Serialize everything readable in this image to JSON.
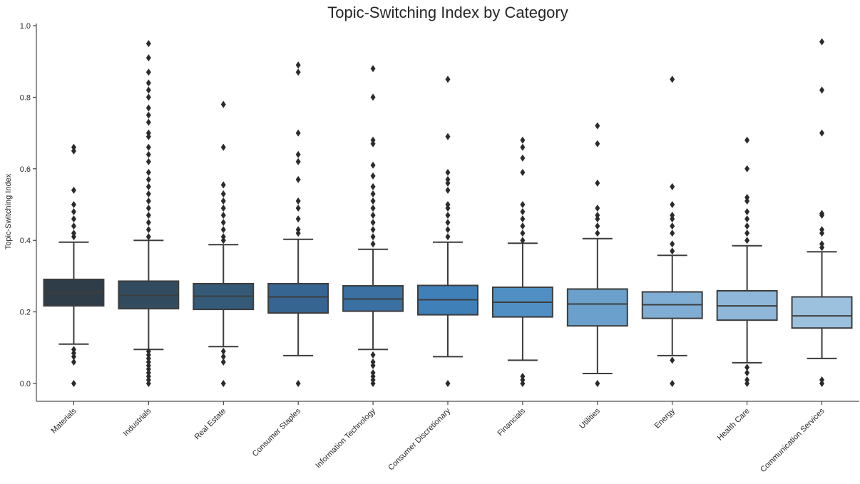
{
  "chart_data": {
    "type": "box",
    "title": "Topic-Switching Index by Category",
    "xlabel": "",
    "ylabel": "Topic-Switching Index",
    "ylim": [
      -0.05,
      1.0
    ],
    "yticks": [
      0.0,
      0.2,
      0.4,
      0.6,
      0.8,
      1.0
    ],
    "ytick_labels": [
      "0.0",
      "0.2",
      "0.4",
      "0.6",
      "0.8",
      "1.0"
    ],
    "grid": false,
    "categories": [
      "Materials",
      "Industrials",
      "Real Estate",
      "Consumer Staples",
      "Information Technology",
      "Consumer Discretionary",
      "Financials",
      "Utilities",
      "Energy",
      "Health Care",
      "Communication Services"
    ],
    "colors": [
      "#2f3d48",
      "#324b5e",
      "#345a78",
      "#376591",
      "#3a70a2",
      "#3f80b9",
      "#4f8fc3",
      "#6aa0cb",
      "#7fadd3",
      "#8eb7d9",
      "#9cc1df"
    ],
    "boxes": [
      {
        "whislo": 0.11,
        "q1": 0.217,
        "med": 0.254,
        "q3": 0.291,
        "whishi": 0.395,
        "fliers": [
          0.0,
          0.06,
          0.075,
          0.085,
          0.095,
          0.41,
          0.42,
          0.44,
          0.46,
          0.48,
          0.5,
          0.54,
          0.65,
          0.66
        ]
      },
      {
        "whislo": 0.095,
        "q1": 0.209,
        "med": 0.246,
        "q3": 0.286,
        "whishi": 0.4,
        "fliers": [
          0.0,
          0.01,
          0.02,
          0.03,
          0.04,
          0.05,
          0.06,
          0.07,
          0.08,
          0.09,
          0.41,
          0.43,
          0.45,
          0.47,
          0.49,
          0.51,
          0.53,
          0.55,
          0.57,
          0.59,
          0.62,
          0.64,
          0.66,
          0.69,
          0.7,
          0.73,
          0.75,
          0.77,
          0.8,
          0.82,
          0.84,
          0.87,
          0.91,
          0.95
        ]
      },
      {
        "whislo": 0.103,
        "q1": 0.207,
        "med": 0.244,
        "q3": 0.279,
        "whishi": 0.388,
        "fliers": [
          0.0,
          0.06,
          0.075,
          0.09,
          0.4,
          0.41,
          0.43,
          0.45,
          0.47,
          0.49,
          0.51,
          0.53,
          0.555,
          0.66,
          0.78
        ]
      },
      {
        "whislo": 0.078,
        "q1": 0.197,
        "med": 0.242,
        "q3": 0.279,
        "whishi": 0.403,
        "fliers": [
          0.0,
          0.42,
          0.43,
          0.46,
          0.49,
          0.51,
          0.57,
          0.62,
          0.64,
          0.7,
          0.87,
          0.89
        ]
      },
      {
        "whislo": 0.095,
        "q1": 0.202,
        "med": 0.236,
        "q3": 0.273,
        "whishi": 0.375,
        "fliers": [
          0.0,
          0.01,
          0.02,
          0.03,
          0.05,
          0.06,
          0.08,
          0.39,
          0.41,
          0.43,
          0.45,
          0.47,
          0.49,
          0.51,
          0.53,
          0.55,
          0.58,
          0.61,
          0.67,
          0.68,
          0.8,
          0.88
        ]
      },
      {
        "whislo": 0.075,
        "q1": 0.192,
        "med": 0.234,
        "q3": 0.274,
        "whishi": 0.395,
        "fliers": [
          0.0,
          0.41,
          0.43,
          0.45,
          0.47,
          0.49,
          0.5,
          0.54,
          0.56,
          0.57,
          0.59,
          0.69,
          0.85
        ]
      },
      {
        "whislo": 0.065,
        "q1": 0.186,
        "med": 0.227,
        "q3": 0.269,
        "whishi": 0.392,
        "fliers": [
          0.0,
          0.01,
          0.02,
          0.4,
          0.42,
          0.44,
          0.46,
          0.48,
          0.5,
          0.59,
          0.63,
          0.66,
          0.68
        ]
      },
      {
        "whislo": 0.028,
        "q1": 0.161,
        "med": 0.222,
        "q3": 0.264,
        "whishi": 0.405,
        "fliers": [
          0.0,
          0.42,
          0.44,
          0.46,
          0.47,
          0.49,
          0.56,
          0.67,
          0.72
        ]
      },
      {
        "whislo": 0.078,
        "q1": 0.182,
        "med": 0.22,
        "q3": 0.256,
        "whishi": 0.358,
        "fliers": [
          0.0,
          0.065,
          0.37,
          0.39,
          0.42,
          0.44,
          0.46,
          0.47,
          0.5,
          0.55,
          0.85
        ]
      },
      {
        "whislo": 0.058,
        "q1": 0.177,
        "med": 0.217,
        "q3": 0.259,
        "whishi": 0.385,
        "fliers": [
          0.0,
          0.01,
          0.03,
          0.045,
          0.4,
          0.42,
          0.44,
          0.46,
          0.48,
          0.51,
          0.52,
          0.6,
          0.68
        ]
      },
      {
        "whislo": 0.07,
        "q1": 0.155,
        "med": 0.189,
        "q3": 0.242,
        "whishi": 0.368,
        "fliers": [
          0.0,
          0.01,
          0.38,
          0.39,
          0.42,
          0.43,
          0.47,
          0.475,
          0.7,
          0.82,
          0.955
        ]
      }
    ]
  }
}
